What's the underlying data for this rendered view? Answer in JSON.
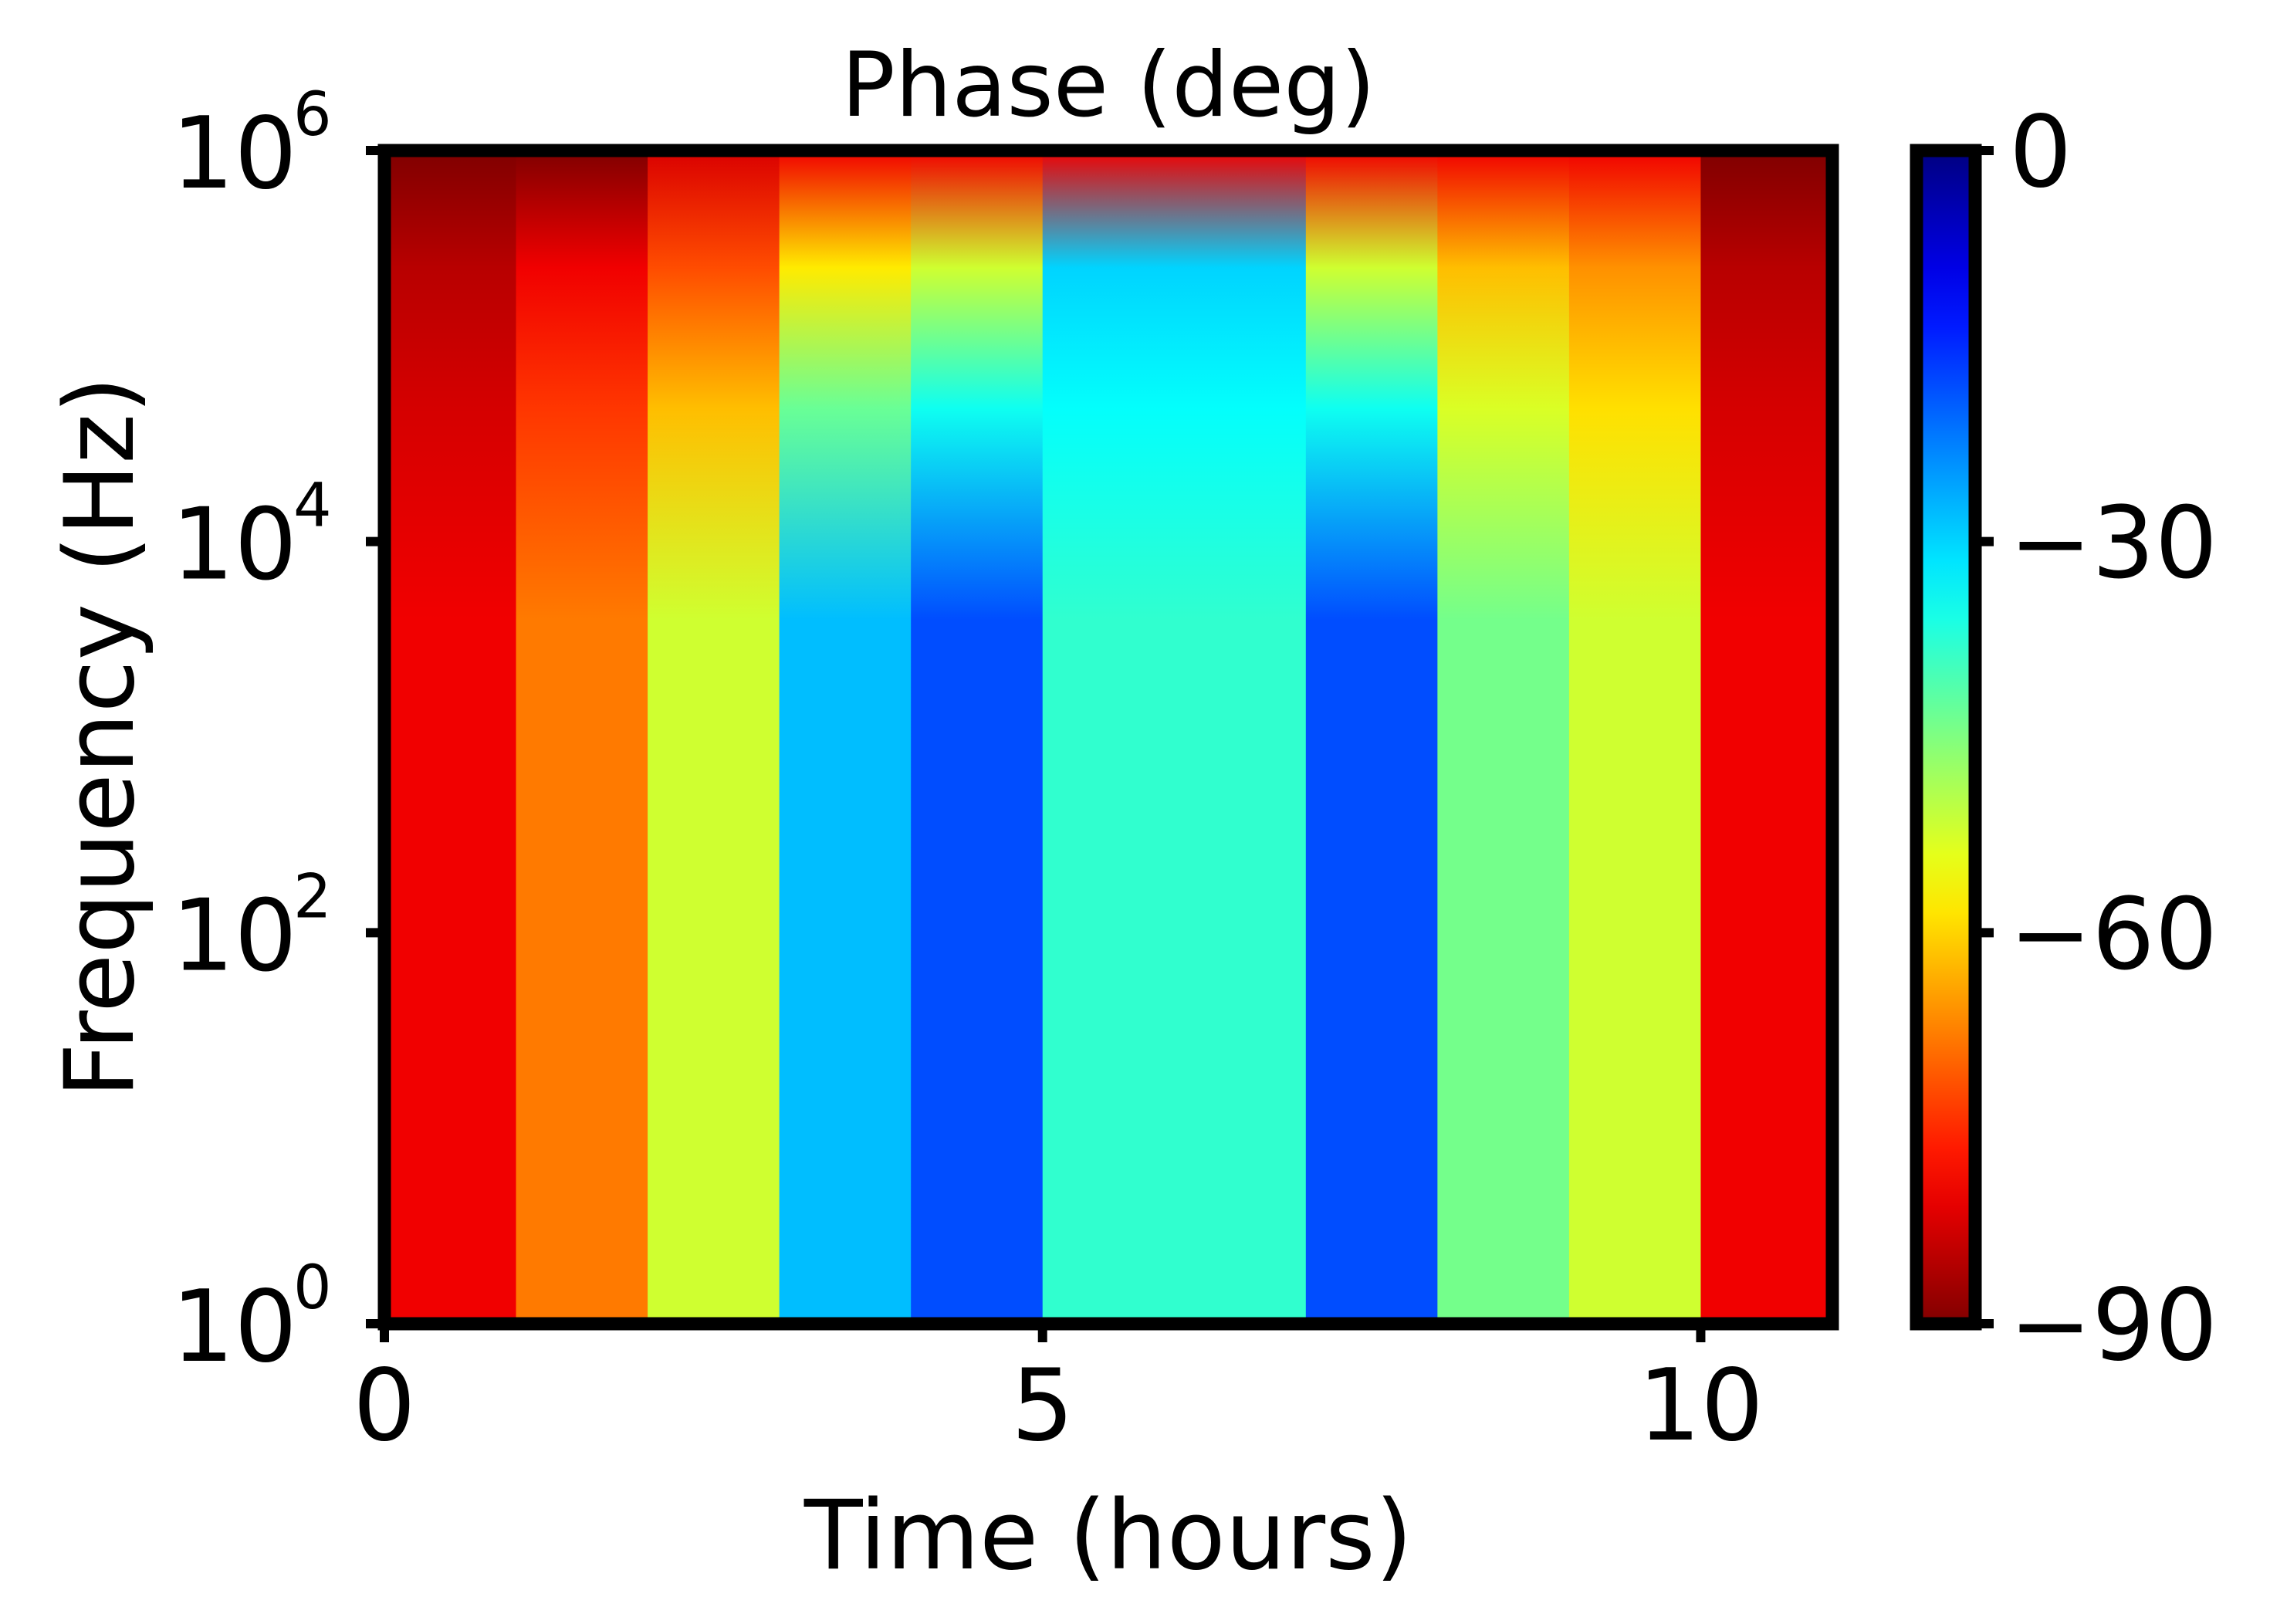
{
  "chart_data": {
    "type": "heatmap",
    "title": "Phase (deg)",
    "xlabel": "Time (hours)",
    "ylabel": "Frequency (Hz)",
    "xlim": [
      0,
      11
    ],
    "ylim": [
      1,
      1000000
    ],
    "yscale": "log",
    "xticks": [
      {
        "value": 0,
        "label": "0"
      },
      {
        "value": 5,
        "label": "5"
      },
      {
        "value": 10,
        "label": "10"
      }
    ],
    "yticks": [
      {
        "value": 1,
        "base": "10",
        "exp": "0"
      },
      {
        "value": 100,
        "base": "10",
        "exp": "2"
      },
      {
        "value": 10000,
        "base": "10",
        "exp": "4"
      },
      {
        "value": 1000000,
        "base": "10",
        "exp": "6"
      }
    ],
    "colorbar": {
      "colormap": "jet",
      "range": [
        -90,
        0
      ],
      "ticks": [
        {
          "value": 0,
          "label": "0"
        },
        {
          "value": -30,
          "label": "−30"
        },
        {
          "value": -60,
          "label": "−60"
        },
        {
          "value": -90,
          "label": "−90"
        }
      ]
    },
    "time_bands_hours": [
      {
        "start": 0,
        "end": 1,
        "low_freq_phase": -80,
        "top_freq_phase": -85
      },
      {
        "start": 1,
        "end": 2,
        "low_freq_phase": -68,
        "top_freq_phase": -80
      },
      {
        "start": 2,
        "end": 3,
        "low_freq_phase": -52,
        "top_freq_phase": -72
      },
      {
        "start": 3,
        "end": 4,
        "low_freq_phase": -28,
        "top_freq_phase": -58
      },
      {
        "start": 4,
        "end": 5,
        "low_freq_phase": -18,
        "top_freq_phase": -52
      },
      {
        "start": 5,
        "end": 7,
        "low_freq_phase": -38,
        "top_freq_phase": -30
      },
      {
        "start": 7,
        "end": 8,
        "low_freq_phase": -18,
        "top_freq_phase": -52
      },
      {
        "start": 8,
        "end": 9,
        "low_freq_phase": -44,
        "top_freq_phase": -62
      },
      {
        "start": 9,
        "end": 10,
        "low_freq_phase": -52,
        "top_freq_phase": -66
      },
      {
        "start": 10,
        "end": 11,
        "low_freq_phase": -80,
        "top_freq_phase": -85
      }
    ]
  }
}
